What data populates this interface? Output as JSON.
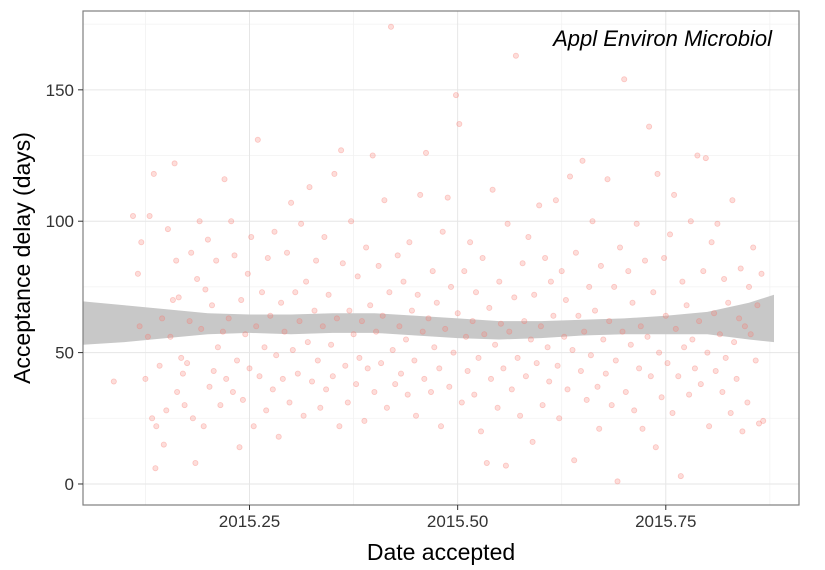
{
  "chart_data": {
    "type": "scatter",
    "annotation": "Appl Environ Microbiol",
    "xlabel": "Date accepted",
    "ylabel": "Acceptance delay (days)",
    "xlim": [
      2015.05,
      2015.91
    ],
    "ylim": [
      -8,
      180
    ],
    "x_ticks": [
      {
        "value": 2015.25,
        "label": "2015.25"
      },
      {
        "value": 2015.5,
        "label": "2015.50"
      },
      {
        "value": 2015.75,
        "label": "2015.75"
      }
    ],
    "y_ticks": [
      {
        "value": 0,
        "label": "0"
      },
      {
        "value": 50,
        "label": "50"
      },
      {
        "value": 100,
        "label": "100"
      },
      {
        "value": 150,
        "label": "150"
      }
    ],
    "grid": true,
    "point_color": "#F8766D",
    "point_alpha": 0.25,
    "ribbon_color": "#C8C8C8",
    "points": [
      [
        2015.087,
        39
      ],
      [
        2015.11,
        102
      ],
      [
        2015.116,
        80
      ],
      [
        2015.118,
        60
      ],
      [
        2015.12,
        92
      ],
      [
        2015.125,
        40
      ],
      [
        2015.128,
        56
      ],
      [
        2015.13,
        102
      ],
      [
        2015.133,
        25
      ],
      [
        2015.135,
        118
      ],
      [
        2015.137,
        6
      ],
      [
        2015.138,
        22
      ],
      [
        2015.142,
        45
      ],
      [
        2015.145,
        63
      ],
      [
        2015.147,
        15
      ],
      [
        2015.15,
        28
      ],
      [
        2015.152,
        97
      ],
      [
        2015.155,
        56
      ],
      [
        2015.158,
        70
      ],
      [
        2015.16,
        122
      ],
      [
        2015.162,
        85
      ],
      [
        2015.163,
        35
      ],
      [
        2015.165,
        71
      ],
      [
        2015.168,
        48
      ],
      [
        2015.17,
        42
      ],
      [
        2015.172,
        30
      ],
      [
        2015.175,
        46
      ],
      [
        2015.178,
        62
      ],
      [
        2015.18,
        88
      ],
      [
        2015.182,
        25
      ],
      [
        2015.185,
        8
      ],
      [
        2015.187,
        78
      ],
      [
        2015.19,
        100
      ],
      [
        2015.192,
        59
      ],
      [
        2015.195,
        22
      ],
      [
        2015.197,
        74
      ],
      [
        2015.2,
        93
      ],
      [
        2015.202,
        37
      ],
      [
        2015.205,
        68
      ],
      [
        2015.207,
        43
      ],
      [
        2015.21,
        85
      ],
      [
        2015.212,
        52
      ],
      [
        2015.215,
        30
      ],
      [
        2015.218,
        58
      ],
      [
        2015.22,
        116
      ],
      [
        2015.222,
        40
      ],
      [
        2015.225,
        63
      ],
      [
        2015.228,
        100
      ],
      [
        2015.23,
        35
      ],
      [
        2015.232,
        87
      ],
      [
        2015.235,
        47
      ],
      [
        2015.238,
        14
      ],
      [
        2015.24,
        70
      ],
      [
        2015.242,
        32
      ],
      [
        2015.245,
        57
      ],
      [
        2015.248,
        80
      ],
      [
        2015.25,
        44
      ],
      [
        2015.252,
        94
      ],
      [
        2015.255,
        22
      ],
      [
        2015.258,
        60
      ],
      [
        2015.26,
        131
      ],
      [
        2015.262,
        41
      ],
      [
        2015.265,
        73
      ],
      [
        2015.268,
        52
      ],
      [
        2015.27,
        28
      ],
      [
        2015.272,
        86
      ],
      [
        2015.275,
        64
      ],
      [
        2015.278,
        36
      ],
      [
        2015.28,
        96
      ],
      [
        2015.282,
        49
      ],
      [
        2015.285,
        18
      ],
      [
        2015.288,
        69
      ],
      [
        2015.29,
        40
      ],
      [
        2015.292,
        58
      ],
      [
        2015.295,
        88
      ],
      [
        2015.298,
        31
      ],
      [
        2015.3,
        107
      ],
      [
        2015.302,
        51
      ],
      [
        2015.305,
        73
      ],
      [
        2015.308,
        42
      ],
      [
        2015.31,
        62
      ],
      [
        2015.312,
        99
      ],
      [
        2015.315,
        26
      ],
      [
        2015.318,
        77
      ],
      [
        2015.32,
        54
      ],
      [
        2015.322,
        113
      ],
      [
        2015.325,
        39
      ],
      [
        2015.328,
        66
      ],
      [
        2015.33,
        85
      ],
      [
        2015.332,
        47
      ],
      [
        2015.335,
        29
      ],
      [
        2015.338,
        60
      ],
      [
        2015.34,
        94
      ],
      [
        2015.342,
        36
      ],
      [
        2015.345,
        72
      ],
      [
        2015.348,
        53
      ],
      [
        2015.35,
        41
      ],
      [
        2015.352,
        118
      ],
      [
        2015.355,
        63
      ],
      [
        2015.358,
        22
      ],
      [
        2015.36,
        127
      ],
      [
        2015.362,
        84
      ],
      [
        2015.365,
        45
      ],
      [
        2015.368,
        31
      ],
      [
        2015.37,
        66
      ],
      [
        2015.372,
        100
      ],
      [
        2015.375,
        57
      ],
      [
        2015.378,
        38
      ],
      [
        2015.38,
        79
      ],
      [
        2015.382,
        48
      ],
      [
        2015.385,
        62
      ],
      [
        2015.388,
        24
      ],
      [
        2015.39,
        90
      ],
      [
        2015.392,
        44
      ],
      [
        2015.395,
        68
      ],
      [
        2015.398,
        125
      ],
      [
        2015.4,
        35
      ],
      [
        2015.402,
        58
      ],
      [
        2015.405,
        83
      ],
      [
        2015.408,
        46
      ],
      [
        2015.41,
        64
      ],
      [
        2015.412,
        108
      ],
      [
        2015.415,
        29
      ],
      [
        2015.418,
        73
      ],
      [
        2015.42,
        174
      ],
      [
        2015.422,
        51
      ],
      [
        2015.425,
        38
      ],
      [
        2015.428,
        87
      ],
      [
        2015.43,
        60
      ],
      [
        2015.432,
        42
      ],
      [
        2015.435,
        77
      ],
      [
        2015.438,
        55
      ],
      [
        2015.44,
        34
      ],
      [
        2015.442,
        92
      ],
      [
        2015.445,
        66
      ],
      [
        2015.448,
        47
      ],
      [
        2015.45,
        26
      ],
      [
        2015.452,
        72
      ],
      [
        2015.455,
        110
      ],
      [
        2015.458,
        58
      ],
      [
        2015.46,
        40
      ],
      [
        2015.462,
        126
      ],
      [
        2015.465,
        63
      ],
      [
        2015.468,
        35
      ],
      [
        2015.47,
        81
      ],
      [
        2015.472,
        52
      ],
      [
        2015.475,
        69
      ],
      [
        2015.478,
        44
      ],
      [
        2015.48,
        22
      ],
      [
        2015.482,
        96
      ],
      [
        2015.485,
        59
      ],
      [
        2015.488,
        109
      ],
      [
        2015.49,
        37
      ],
      [
        2015.492,
        75
      ],
      [
        2015.495,
        50
      ],
      [
        2015.498,
        148
      ],
      [
        2015.5,
        65
      ],
      [
        2015.502,
        137
      ],
      [
        2015.505,
        31
      ],
      [
        2015.508,
        81
      ],
      [
        2015.51,
        56
      ],
      [
        2015.512,
        43
      ],
      [
        2015.515,
        92
      ],
      [
        2015.518,
        62
      ],
      [
        2015.52,
        34
      ],
      [
        2015.522,
        73
      ],
      [
        2015.525,
        48
      ],
      [
        2015.528,
        20
      ],
      [
        2015.53,
        86
      ],
      [
        2015.532,
        57
      ],
      [
        2015.535,
        8
      ],
      [
        2015.538,
        67
      ],
      [
        2015.54,
        40
      ],
      [
        2015.542,
        112
      ],
      [
        2015.545,
        53
      ],
      [
        2015.548,
        29
      ],
      [
        2015.55,
        77
      ],
      [
        2015.552,
        61
      ],
      [
        2015.555,
        44
      ],
      [
        2015.558,
        7
      ],
      [
        2015.56,
        99
      ],
      [
        2015.562,
        58
      ],
      [
        2015.565,
        36
      ],
      [
        2015.568,
        71
      ],
      [
        2015.57,
        163
      ],
      [
        2015.572,
        48
      ],
      [
        2015.575,
        26
      ],
      [
        2015.578,
        84
      ],
      [
        2015.58,
        62
      ],
      [
        2015.582,
        41
      ],
      [
        2015.585,
        94
      ],
      [
        2015.588,
        55
      ],
      [
        2015.59,
        16
      ],
      [
        2015.592,
        72
      ],
      [
        2015.595,
        46
      ],
      [
        2015.598,
        106
      ],
      [
        2015.6,
        60
      ],
      [
        2015.602,
        30
      ],
      [
        2015.605,
        86
      ],
      [
        2015.608,
        52
      ],
      [
        2015.61,
        39
      ],
      [
        2015.612,
        77
      ],
      [
        2015.615,
        64
      ],
      [
        2015.618,
        108
      ],
      [
        2015.62,
        45
      ],
      [
        2015.622,
        25
      ],
      [
        2015.625,
        81
      ],
      [
        2015.628,
        56
      ],
      [
        2015.63,
        70
      ],
      [
        2015.632,
        36
      ],
      [
        2015.635,
        117
      ],
      [
        2015.638,
        51
      ],
      [
        2015.64,
        9
      ],
      [
        2015.642,
        88
      ],
      [
        2015.645,
        64
      ],
      [
        2015.648,
        43
      ],
      [
        2015.65,
        123
      ],
      [
        2015.652,
        58
      ],
      [
        2015.655,
        32
      ],
      [
        2015.658,
        75
      ],
      [
        2015.66,
        49
      ],
      [
        2015.662,
        100
      ],
      [
        2015.665,
        66
      ],
      [
        2015.668,
        37
      ],
      [
        2015.67,
        21
      ],
      [
        2015.672,
        83
      ],
      [
        2015.675,
        55
      ],
      [
        2015.678,
        42
      ],
      [
        2015.68,
        116
      ],
      [
        2015.682,
        62
      ],
      [
        2015.685,
        30
      ],
      [
        2015.688,
        75
      ],
      [
        2015.69,
        47
      ],
      [
        2015.692,
        1
      ],
      [
        2015.695,
        90
      ],
      [
        2015.698,
        58
      ],
      [
        2015.7,
        154
      ],
      [
        2015.702,
        35
      ],
      [
        2015.705,
        81
      ],
      [
        2015.708,
        53
      ],
      [
        2015.71,
        69
      ],
      [
        2015.712,
        28
      ],
      [
        2015.715,
        99
      ],
      [
        2015.718,
        44
      ],
      [
        2015.72,
        60
      ],
      [
        2015.722,
        21
      ],
      [
        2015.725,
        85
      ],
      [
        2015.728,
        56
      ],
      [
        2015.73,
        136
      ],
      [
        2015.732,
        41
      ],
      [
        2015.735,
        73
      ],
      [
        2015.738,
        14
      ],
      [
        2015.74,
        118
      ],
      [
        2015.742,
        50
      ],
      [
        2015.745,
        33
      ],
      [
        2015.748,
        86
      ],
      [
        2015.75,
        64
      ],
      [
        2015.752,
        46
      ],
      [
        2015.755,
        95
      ],
      [
        2015.758,
        27
      ],
      [
        2015.76,
        110
      ],
      [
        2015.762,
        59
      ],
      [
        2015.765,
        41
      ],
      [
        2015.768,
        3
      ],
      [
        2015.77,
        77
      ],
      [
        2015.772,
        52
      ],
      [
        2015.775,
        68
      ],
      [
        2015.778,
        34
      ],
      [
        2015.78,
        100
      ],
      [
        2015.782,
        55
      ],
      [
        2015.785,
        44
      ],
      [
        2015.788,
        125
      ],
      [
        2015.79,
        62
      ],
      [
        2015.792,
        38
      ],
      [
        2015.795,
        81
      ],
      [
        2015.798,
        124
      ],
      [
        2015.8,
        50
      ],
      [
        2015.802,
        22
      ],
      [
        2015.805,
        92
      ],
      [
        2015.808,
        65
      ],
      [
        2015.81,
        43
      ],
      [
        2015.812,
        99
      ],
      [
        2015.815,
        57
      ],
      [
        2015.818,
        35
      ],
      [
        2015.82,
        78
      ],
      [
        2015.822,
        48
      ],
      [
        2015.825,
        69
      ],
      [
        2015.828,
        27
      ],
      [
        2015.83,
        108
      ],
      [
        2015.832,
        54
      ],
      [
        2015.835,
        40
      ],
      [
        2015.838,
        63
      ],
      [
        2015.84,
        82
      ],
      [
        2015.842,
        20
      ],
      [
        2015.845,
        60
      ],
      [
        2015.848,
        31
      ],
      [
        2015.85,
        75
      ],
      [
        2015.852,
        57
      ],
      [
        2015.855,
        90
      ],
      [
        2015.858,
        47
      ],
      [
        2015.86,
        68
      ],
      [
        2015.862,
        23
      ],
      [
        2015.865,
        80
      ],
      [
        2015.867,
        24
      ]
    ],
    "ribbon": {
      "x": [
        2015.05,
        2015.1,
        2015.15,
        2015.2,
        2015.25,
        2015.3,
        2015.35,
        2015.4,
        2015.45,
        2015.5,
        2015.55,
        2015.6,
        2015.65,
        2015.7,
        2015.75,
        2015.8,
        2015.85,
        2015.88
      ],
      "lower": [
        53,
        54,
        55.5,
        57,
        57.5,
        57,
        57.5,
        57.5,
        56.5,
        55.5,
        55,
        55.5,
        56.5,
        57,
        57,
        57,
        55,
        54
      ],
      "upper": [
        69.5,
        68,
        66.5,
        65,
        64.5,
        64.5,
        65,
        65,
        64,
        63,
        62,
        62,
        62.5,
        63,
        64,
        65.5,
        69,
        72
      ]
    }
  }
}
